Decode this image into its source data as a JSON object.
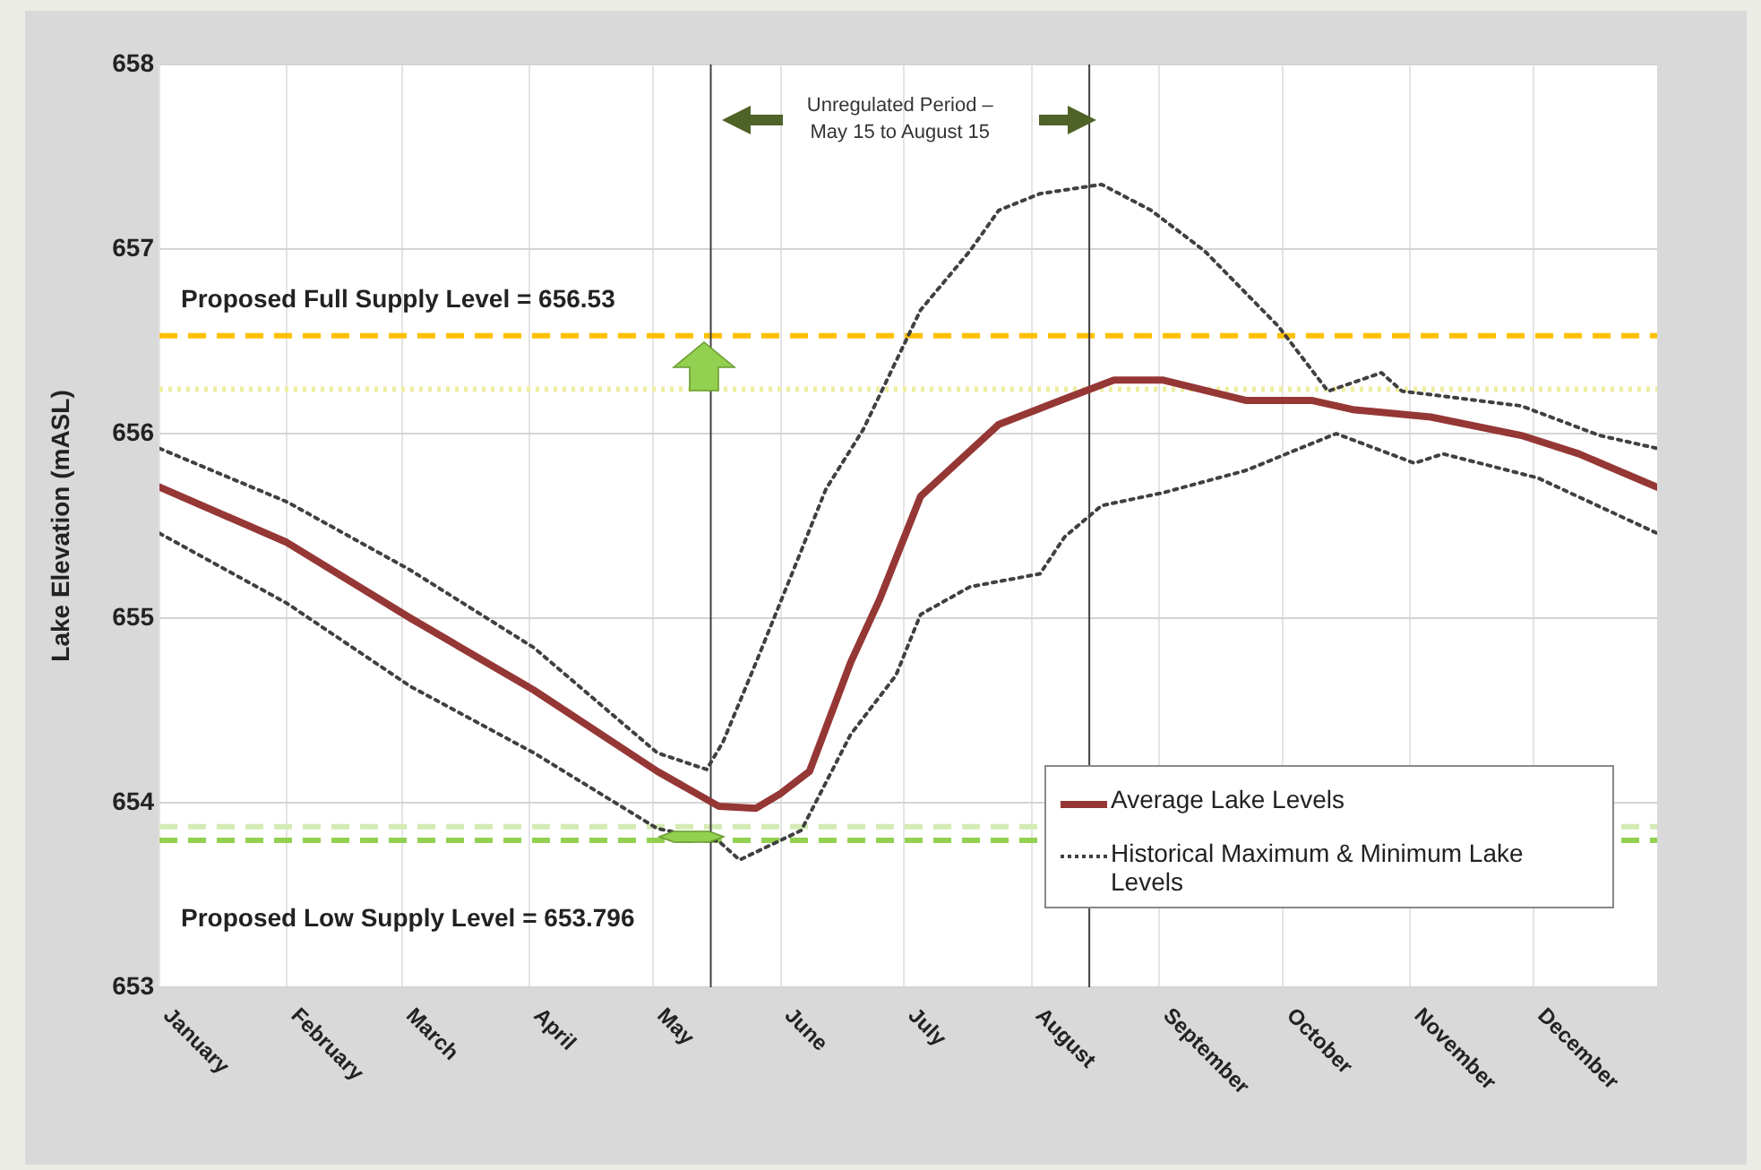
{
  "chart_data": {
    "type": "line",
    "ylabel": "Lake Elevation (mASL)",
    "xlim": [
      "--01-01",
      "--12-31"
    ],
    "ylim": [
      653,
      658
    ],
    "xticks": [
      {
        "value": "--01-01",
        "label": "January"
      },
      {
        "value": "--02-01",
        "label": "February"
      },
      {
        "value": "--03-01",
        "label": "March"
      },
      {
        "value": "--04-01",
        "label": "April"
      },
      {
        "value": "--05-01",
        "label": "May"
      },
      {
        "value": "--06-01",
        "label": "June"
      },
      {
        "value": "--07-01",
        "label": "July"
      },
      {
        "value": "--08-01",
        "label": "August"
      },
      {
        "value": "--09-01",
        "label": "September"
      },
      {
        "value": "--10-01",
        "label": "October"
      },
      {
        "value": "--11-01",
        "label": "November"
      },
      {
        "value": "--12-01",
        "label": "December"
      }
    ],
    "yticks": [
      653,
      654,
      655,
      656,
      657,
      658
    ],
    "grid": true,
    "legend": "bottom right",
    "marker": "none",
    "series": [
      {
        "name": "Average Lake Levels",
        "color": "#953735",
        "line_style": "solid",
        "x": [
          "--01-01",
          "--02-01",
          "--03-03",
          "--04-02",
          "--05-02",
          "--05-17",
          "--05-26",
          "--06-01",
          "--06-08",
          "--06-18",
          "--06-25",
          "--07-05",
          "--07-24",
          "--08-08",
          "--08-21",
          "--09-02",
          "--09-22",
          "--10-08",
          "--10-18",
          "--11-06",
          "--11-28",
          "--12-12",
          "--12-31"
        ],
        "values": [
          655.71,
          655.41,
          655.0,
          654.61,
          654.17,
          653.98,
          653.97,
          654.05,
          654.17,
          654.76,
          655.1,
          655.66,
          656.05,
          656.18,
          656.29,
          656.29,
          656.18,
          656.18,
          656.13,
          656.09,
          655.99,
          655.89,
          655.71
        ]
      },
      {
        "name": "Historical Maximum & Minimum Lake Levels",
        "color": "#404040",
        "line_style": "dotted",
        "x": [
          "--01-01",
          "--02-01",
          "--03-03",
          "--04-02",
          "--05-02",
          "--05-14",
          "--05-18",
          "--05-26",
          "--06-03",
          "--06-12",
          "--06-21",
          "--07-05",
          "--07-17",
          "--07-24",
          "--08-03",
          "--08-18",
          "--08-30",
          "--09-12",
          "--09-30",
          "--10-12",
          "--10-25",
          "--10-30",
          "--11-28",
          "--12-17",
          "--12-31"
        ],
        "values": [
          655.92,
          655.63,
          655.26,
          654.84,
          654.27,
          654.18,
          654.33,
          654.76,
          655.2,
          655.7,
          656.02,
          656.67,
          656.99,
          657.21,
          657.3,
          657.35,
          657.21,
          656.99,
          656.58,
          656.23,
          656.33,
          656.23,
          656.15,
          655.99,
          655.92
        ]
      },
      {
        "color": "#404040",
        "line_style": "dotted",
        "x": [
          "--01-01",
          "--02-01",
          "--03-03",
          "--04-02",
          "--05-02",
          "--05-17",
          "--05-22",
          "--06-06",
          "--06-18",
          "--06-29",
          "--07-05",
          "--07-17",
          "--08-03",
          "--08-09",
          "--08-18",
          "--09-02",
          "--09-22",
          "--10-14",
          "--11-02",
          "--11-09",
          "--12-02",
          "--12-31"
        ],
        "values": [
          655.46,
          655.08,
          654.63,
          654.27,
          653.86,
          653.79,
          653.69,
          653.85,
          654.37,
          654.69,
          655.02,
          655.17,
          655.24,
          655.44,
          655.61,
          655.68,
          655.8,
          656.0,
          655.84,
          655.89,
          655.76,
          655.46
        ]
      }
    ],
    "ref_lines": [
      {
        "axis": "y",
        "value": 656.53,
        "label": "Proposed Full Supply Level = 656.53",
        "color": "#ffc000",
        "line_style": "dashed"
      },
      {
        "axis": "y",
        "value": 656.24,
        "color": "#eeeea0",
        "line_style": "dotted"
      },
      {
        "axis": "y",
        "value": 653.87,
        "color": "#d4ebb4",
        "line_style": "dashed"
      },
      {
        "axis": "y",
        "value": 653.796,
        "label": "Proposed Low Supply Level = 653.796",
        "color": "#92d050",
        "line_style": "dashed"
      },
      {
        "axis": "x",
        "value": "--05-15",
        "color": "#404040",
        "line_style": "solid"
      },
      {
        "axis": "x",
        "value": "--08-15",
        "color": "#404040",
        "line_style": "solid"
      }
    ],
    "annotations": [
      "Unregulated Period – May 15 to August 15"
    ]
  }
}
